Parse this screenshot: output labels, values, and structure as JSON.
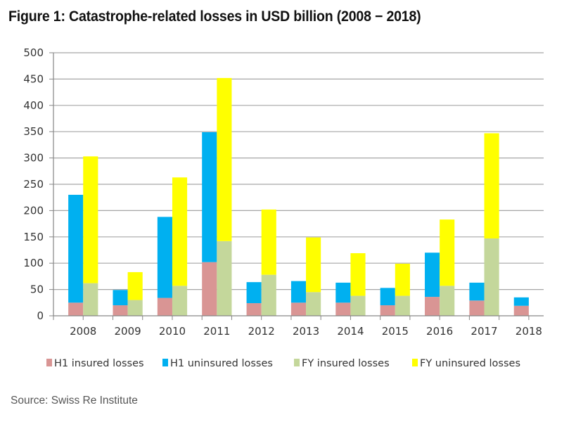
{
  "figure": {
    "title": "Figure 1: Catastrophe-related losses in USD billion (2008 − 2018)",
    "source": "Source: Swiss Re Institute"
  },
  "colors": {
    "h1_insured": "#d99594",
    "h1_uninsured": "#00b0f0",
    "fy_insured": "#c4d79b",
    "fy_uninsured": "#ffff00",
    "grid": "#a6a6a6",
    "axis": "#868686"
  },
  "chart_data": {
    "type": "bar",
    "stacked": true,
    "title": "Figure 1: Catastrophe-related losses in USD billion (2008 − 2018)",
    "xlabel": "",
    "ylabel": "",
    "ylim": [
      0,
      500
    ],
    "yticks": [
      0,
      50,
      100,
      150,
      200,
      250,
      300,
      350,
      400,
      450,
      500
    ],
    "grid": true,
    "legend_position": "bottom",
    "categories": [
      "2008",
      "2009",
      "2010",
      "2011",
      "2012",
      "2013",
      "2014",
      "2015",
      "2016",
      "2017",
      "2018"
    ],
    "stacks": [
      {
        "stack": "H1",
        "series": [
          "H1 insured losses",
          "H1 uninsured losses"
        ]
      },
      {
        "stack": "FY",
        "series": [
          "FY insured losses",
          "FY uninsured losses"
        ]
      }
    ],
    "series": [
      {
        "name": "H1 insured losses",
        "stack": "H1",
        "color": "#d99594",
        "values": [
          25,
          20,
          34,
          102,
          24,
          25,
          25,
          20,
          36,
          29,
          19
        ]
      },
      {
        "name": "H1 uninsured losses",
        "stack": "H1",
        "color": "#00b0f0",
        "values": [
          205,
          29,
          154,
          247,
          40,
          41,
          38,
          33,
          84,
          34,
          16
        ]
      },
      {
        "name": "FY insured losses",
        "stack": "FY",
        "color": "#c4d79b",
        "values": [
          62,
          30,
          57,
          142,
          78,
          45,
          38,
          38,
          57,
          147,
          null
        ]
      },
      {
        "name": "FY uninsured losses",
        "stack": "FY",
        "color": "#ffff00",
        "values": [
          241,
          53,
          206,
          310,
          124,
          104,
          81,
          61,
          126,
          200,
          null
        ]
      }
    ]
  }
}
